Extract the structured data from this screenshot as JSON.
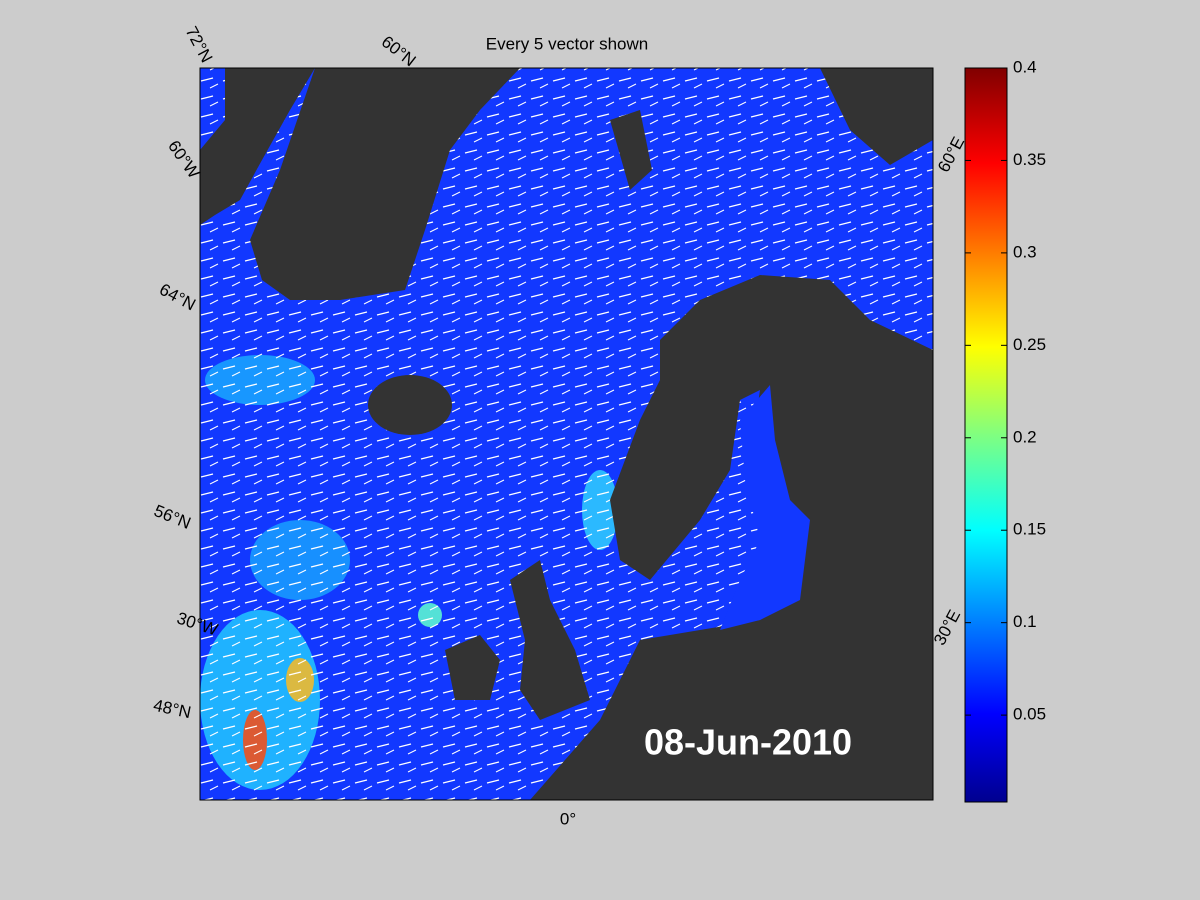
{
  "title": "Every 5 vector shown",
  "date_label": "08-Jun-2010",
  "graticule_labels": [
    "72°N",
    "60°N",
    "60°W",
    "64°N",
    "56°N",
    "30°W",
    "48°N",
    "0°",
    "60°E",
    "30°E"
  ],
  "colorbar": {
    "lim": [
      0.003,
      0.4
    ],
    "ticks": [
      0.05,
      0.1,
      0.15,
      0.2,
      0.25,
      0.3,
      0.35,
      0.4
    ]
  }
}
